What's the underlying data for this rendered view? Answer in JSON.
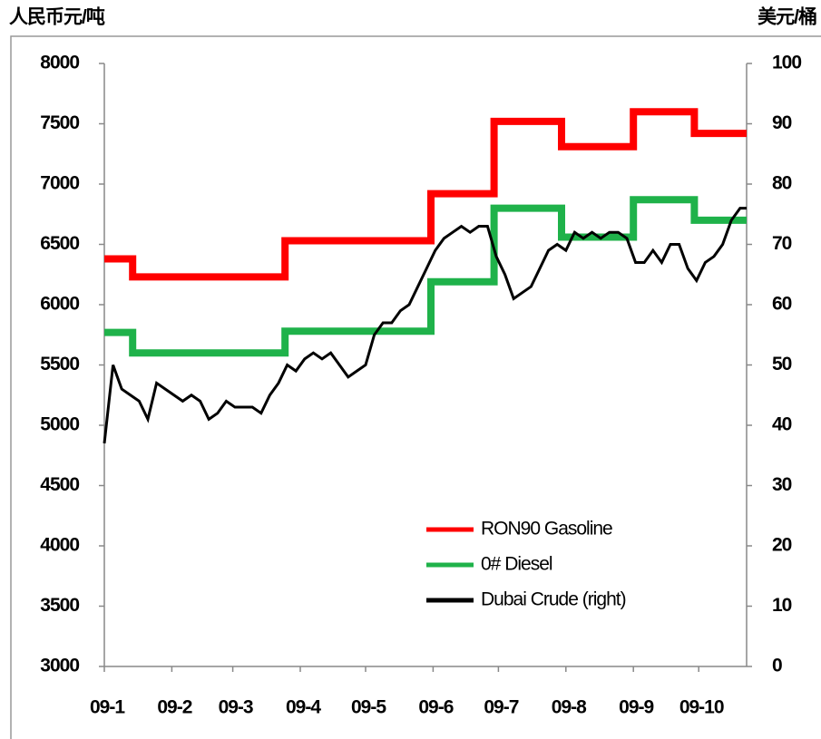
{
  "chart_data": {
    "type": "line",
    "ylabel": "人民币元/吨",
    "y2label": "美元/桶",
    "xlim": [
      0,
      295
    ],
    "xticks": [
      {
        "value": 0,
        "label": "09-1"
      },
      {
        "value": 31,
        "label": "09-2"
      },
      {
        "value": 59,
        "label": "09-3"
      },
      {
        "value": 90,
        "label": "09-4"
      },
      {
        "value": 120,
        "label": "09-5"
      },
      {
        "value": 151,
        "label": "09-6"
      },
      {
        "value": 181,
        "label": "09-7"
      },
      {
        "value": 212,
        "label": "09-8"
      },
      {
        "value": 243,
        "label": "09-9"
      },
      {
        "value": 273,
        "label": "09-10"
      }
    ],
    "ylim": [
      3000,
      8000
    ],
    "yticks": [
      3000,
      3500,
      4000,
      4500,
      5000,
      5500,
      6000,
      6500,
      7000,
      7500,
      8000
    ],
    "y2lim": [
      0,
      100
    ],
    "y2ticks": [
      0,
      10,
      20,
      30,
      40,
      50,
      60,
      70,
      80,
      90,
      100
    ],
    "legend": "lower right",
    "series": [
      {
        "name": "RON90 Gasoline",
        "color": "#ff0000",
        "width": 8,
        "x": [
          0,
          13,
          13,
          83,
          83,
          150,
          150,
          179,
          179,
          210,
          210,
          243,
          243,
          271,
          271,
          295
        ],
        "values": [
          6380,
          6380,
          6230,
          6230,
          6530,
          6530,
          6920,
          6920,
          7520,
          7520,
          7310,
          7310,
          7600,
          7600,
          7420,
          7420
        ]
      },
      {
        "name": "0# Diesel",
        "color": "#1fb24a",
        "width": 8,
        "x": [
          0,
          13,
          13,
          83,
          83,
          150,
          150,
          179,
          179,
          210,
          210,
          243,
          243,
          271,
          271,
          295
        ],
        "values": [
          5770,
          5770,
          5600,
          5600,
          5780,
          5780,
          6190,
          6190,
          6800,
          6800,
          6560,
          6560,
          6870,
          6870,
          6700,
          6700
        ]
      },
      {
        "name": "Dubai Crude (right)",
        "color": "#000000",
        "width": 3,
        "axis": "y2",
        "x": [
          0,
          4,
          8,
          12,
          16,
          20,
          24,
          28,
          32,
          36,
          40,
          44,
          48,
          52,
          56,
          60,
          64,
          68,
          72,
          76,
          80,
          84,
          88,
          92,
          96,
          100,
          104,
          108,
          112,
          116,
          120,
          124,
          128,
          132,
          136,
          140,
          144,
          148,
          152,
          156,
          160,
          164,
          168,
          172,
          176,
          180,
          184,
          188,
          192,
          196,
          200,
          204,
          208,
          212,
          216,
          220,
          224,
          228,
          232,
          236,
          240,
          244,
          248,
          252,
          256,
          260,
          264,
          268,
          272,
          276,
          280,
          284,
          288,
          292,
          295
        ],
        "values": [
          37,
          50,
          46,
          45,
          44,
          41,
          47,
          46,
          45,
          44,
          45,
          44,
          41,
          42,
          44,
          43,
          43,
          43,
          42,
          45,
          47,
          50,
          49,
          51,
          52,
          51,
          52,
          50,
          48,
          49,
          50,
          55,
          57,
          57,
          59,
          60,
          63,
          66,
          69,
          71,
          72,
          73,
          72,
          73,
          73,
          68,
          65,
          61,
          62,
          63,
          66,
          69,
          70,
          69,
          72,
          71,
          72,
          71,
          72,
          72,
          71,
          67,
          67,
          69,
          67,
          70,
          70,
          66,
          64,
          67,
          68,
          70,
          74,
          76,
          76
        ]
      }
    ]
  }
}
